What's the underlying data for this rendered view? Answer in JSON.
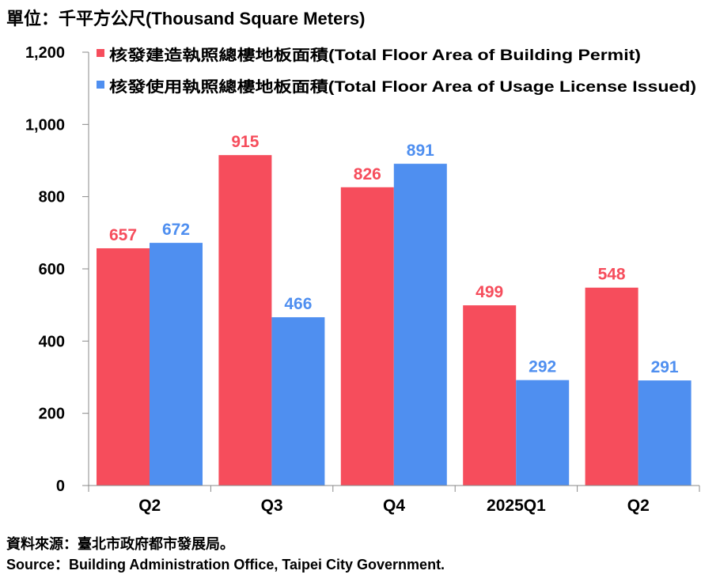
{
  "unit_label": "單位：千平方公尺(Thousand Square Meters)",
  "source_line1": "資料來源：臺北市政府都市發展局。",
  "source_line2": "Source：Building Administration Office, Taipei City Government.",
  "colors": {
    "permit": "#f64d5c",
    "license": "#4f8ff0",
    "axis": "#888888"
  },
  "chart_data": {
    "type": "bar",
    "categories": [
      "Q2",
      "Q3",
      "Q4",
      "2025Q1",
      "Q2"
    ],
    "series": [
      {
        "name": "核發建造執照總樓地板面積(Total Floor Area of Building Permit)",
        "values": [
          657,
          915,
          826,
          499,
          548
        ]
      },
      {
        "name": "核發使用執照總樓地板面積(Total Floor Area of Usage License Issued)",
        "values": [
          672,
          466,
          891,
          292,
          291
        ]
      }
    ],
    "ylim": [
      0,
      1200
    ],
    "yticks": [
      "0",
      "200",
      "400",
      "600",
      "800",
      "1,000",
      "1,200"
    ],
    "ytick_values": [
      0,
      200,
      400,
      600,
      800,
      1000,
      1200
    ],
    "legend_position": "top",
    "grid": false
  }
}
